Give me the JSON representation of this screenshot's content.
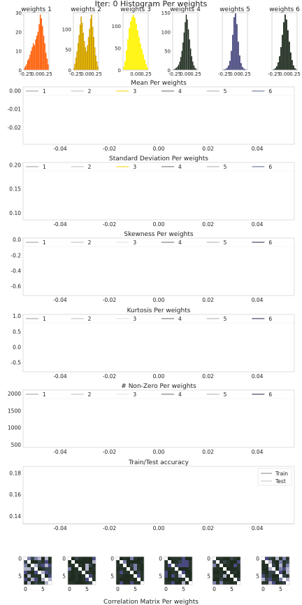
{
  "figure": {
    "title": "Iter: 0 Histogram Per weights",
    "footer": "Correlation Matrix Per weights"
  },
  "chart_data": [
    {
      "type": "bar",
      "title": "weights 1",
      "color": "#ff5a00",
      "xlim": [
        -0.3,
        0.3
      ],
      "ylim": [
        0,
        30
      ],
      "xticks": [
        "-0.25",
        "0.00",
        "0.25"
      ],
      "yticks": [
        0,
        10,
        20,
        30
      ],
      "values": [
        1,
        2,
        3,
        5,
        6,
        8,
        10,
        12,
        14,
        13,
        16,
        18,
        20,
        24,
        29,
        27,
        23,
        18,
        14,
        9,
        6,
        3
      ]
    },
    {
      "type": "bar",
      "title": "weights 2",
      "color": "#ffd100",
      "edge": "#8a5a00",
      "xlim": [
        -0.3,
        0.3
      ],
      "ylim": [
        0,
        140
      ],
      "xticks": [
        "-0.25",
        "0.00",
        "0.25"
      ],
      "yticks": [
        0,
        50,
        100
      ],
      "values": [
        5,
        15,
        30,
        45,
        65,
        85,
        110,
        130,
        115,
        90,
        70,
        55,
        45,
        60,
        80,
        100,
        125,
        135,
        105,
        80,
        55,
        35,
        20,
        8
      ]
    },
    {
      "type": "bar",
      "title": "weights 3",
      "color": "#fff400",
      "xlim": [
        -0.3,
        0.3
      ],
      "ylim": [
        0,
        130
      ],
      "xticks": [
        "0.00",
        "0.25"
      ],
      "yticks": [
        0,
        50,
        100
      ],
      "values": [
        8,
        20,
        45,
        70,
        95,
        110,
        120,
        125,
        118,
        105,
        90,
        75,
        60,
        48,
        36,
        24,
        14,
        6
      ]
    },
    {
      "type": "bar",
      "title": "weights 4",
      "color": "#1e2b1e",
      "xlim": [
        -0.3,
        0.3
      ],
      "ylim": [
        0,
        150
      ],
      "xticks": [
        "-0.25",
        "0.00",
        "0.25"
      ],
      "yticks": [
        0,
        50,
        100,
        150
      ],
      "values": [
        1,
        2,
        4,
        6,
        9,
        14,
        22,
        34,
        50,
        72,
        98,
        125,
        145,
        132,
        106,
        80,
        56,
        36,
        22,
        12,
        6,
        3,
        1
      ]
    },
    {
      "type": "bar",
      "title": "weights 5",
      "color": "#4a4a80",
      "xlim": [
        -0.3,
        0.3
      ],
      "ylim": [
        0,
        150
      ],
      "xticks": [
        "-0.25",
        "0.00",
        "0.25"
      ],
      "yticks": [],
      "values": [
        1,
        2,
        3,
        6,
        12,
        24,
        50,
        92,
        138,
        148,
        120,
        74,
        38,
        18,
        8,
        4,
        2,
        1
      ]
    },
    {
      "type": "bar",
      "title": "weights 6",
      "color": "#1e2b1e",
      "xlim": [
        -0.3,
        0.3
      ],
      "ylim": [
        0,
        150
      ],
      "xticks": [
        "-0.25",
        "0.00",
        "0.25"
      ],
      "yticks": [],
      "values": [
        1,
        2,
        5,
        10,
        20,
        36,
        60,
        92,
        125,
        145,
        132,
        104,
        74,
        46,
        26,
        12,
        5,
        2
      ]
    },
    {
      "type": "line",
      "title": "Mean Per weights",
      "legend": [
        "1",
        "2",
        "3",
        "4",
        "5",
        "6"
      ],
      "colors": [
        "#999999",
        "#bbbbbb",
        "#ffd100",
        "#666666",
        "#aaaaaa",
        "#556688"
      ],
      "xticks": [
        "-0.04",
        "-0.02",
        "0.00",
        "0.02",
        "0.04"
      ],
      "xlim": [
        -0.055,
        0.055
      ],
      "yticks": [
        "0.00",
        "-0.01",
        "-0.02"
      ],
      "ylim": [
        -0.029,
        0.002
      ]
    },
    {
      "type": "line",
      "title": "Standard Deviation Per weights",
      "legend": [
        "1",
        "2",
        "3",
        "4",
        "5",
        "6"
      ],
      "colors": [
        "#999999",
        "#bbbbbb",
        "#ffd100",
        "#666666",
        "#aaaaaa",
        "#556688"
      ],
      "xticks": [
        "-0.04",
        "-0.02",
        "0.00",
        "0.02",
        "0.04"
      ],
      "xlim": [
        -0.055,
        0.055
      ],
      "yticks": [
        "0.20",
        "0.15",
        "0.10"
      ],
      "ylim": [
        0.085,
        0.205
      ]
    },
    {
      "type": "line",
      "title": "Skewness Per weights",
      "legend": [
        "1",
        "2",
        "3",
        "4",
        "5",
        "6"
      ],
      "colors": [
        "#999999",
        "#bbbbbb",
        "#dddddd",
        "#666666",
        "#aaaaaa",
        "#222244"
      ],
      "xticks": [
        "-0.04",
        "-0.02",
        "0.00",
        "0.02",
        "0.04"
      ],
      "xlim": [
        -0.055,
        0.055
      ],
      "yticks": [
        "0.0",
        "-0.2",
        "-0.4",
        "-0.6"
      ],
      "ylim": [
        -0.72,
        0.02
      ]
    },
    {
      "type": "line",
      "title": "Kurtosis Per weights",
      "legend": [
        "1",
        "2",
        "3",
        "4",
        "5",
        "6"
      ],
      "colors": [
        "#999999",
        "#bbbbbb",
        "#dddddd",
        "#666666",
        "#aaaaaa",
        "#222244"
      ],
      "xticks": [
        "-0.04",
        "-0.02",
        "0.00",
        "0.02",
        "0.04"
      ],
      "xlim": [
        -0.055,
        0.055
      ],
      "yticks": [
        "1.0",
        "0.5",
        "0.0",
        "-0.5"
      ],
      "ylim": [
        -0.8,
        1.05
      ]
    },
    {
      "type": "line",
      "title": "# Non-Zero Per weights",
      "legend": [
        "1",
        "2",
        "3",
        "4",
        "5",
        "6"
      ],
      "colors": [
        "#999999",
        "#bbbbbb",
        "#dddddd",
        "#666666",
        "#aaaaaa",
        "#222244"
      ],
      "xticks": [
        "-0.04",
        "-0.02",
        "0.00",
        "0.02",
        "0.04"
      ],
      "xlim": [
        -0.055,
        0.055
      ],
      "yticks": [
        "2000",
        "1500",
        "1000",
        "500"
      ],
      "ylim": [
        420,
        2100
      ]
    },
    {
      "type": "line",
      "title": "Train/Test accuracy",
      "legend": [
        "Train",
        "Test"
      ],
      "colors": [
        "#777777",
        "#bbbbbb"
      ],
      "xticks": [
        "-0.04",
        "-0.02",
        "0.00",
        "0.02",
        "0.04"
      ],
      "xlim": [
        -0.055,
        0.055
      ],
      "yticks": [
        "0.18",
        "0.16",
        "0.14"
      ],
      "ylim": [
        0.133,
        0.186
      ]
    },
    {
      "type": "heatmap",
      "count": 6,
      "size": 8,
      "xticks": [
        "0",
        "5"
      ],
      "yticks": [
        "0",
        "5"
      ]
    }
  ]
}
